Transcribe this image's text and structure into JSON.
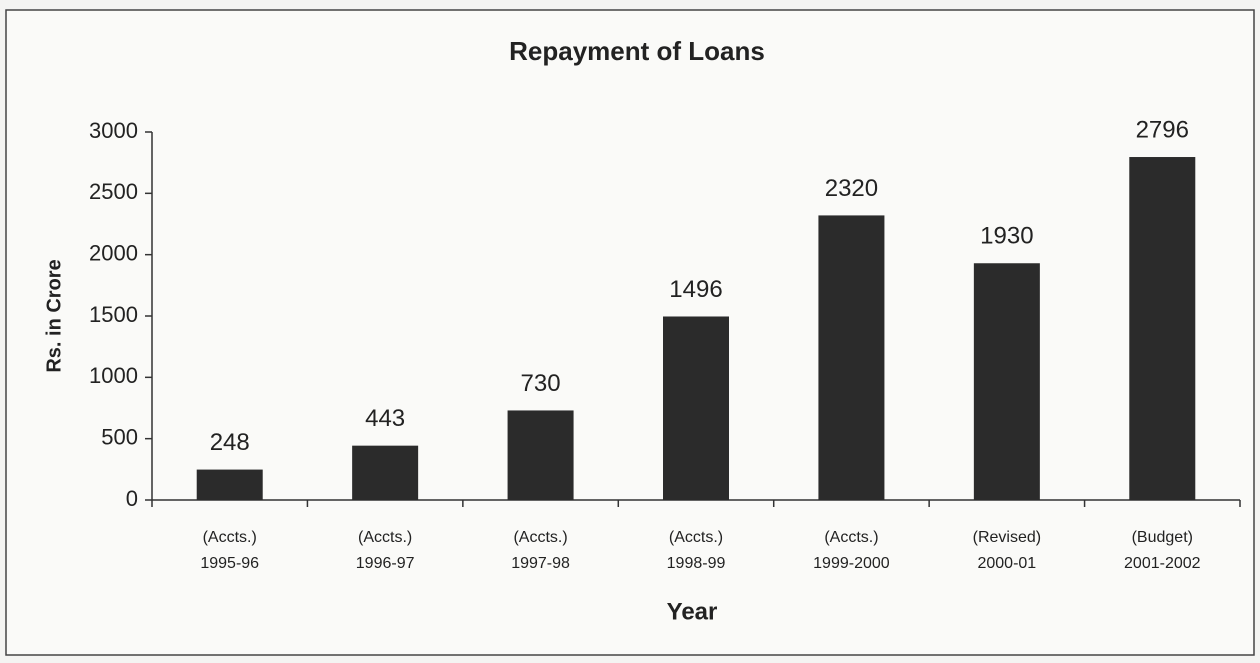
{
  "chart_data": {
    "type": "bar",
    "title": "Repayment of Loans",
    "x_label": "Year",
    "y_label": "Rs. in Crore",
    "categories": [
      [
        "(Accts.)",
        "1995-96"
      ],
      [
        "(Accts.)",
        "1996-97"
      ],
      [
        "(Accts.)",
        "1997-98"
      ],
      [
        "(Accts.)",
        "1998-99"
      ],
      [
        "(Accts.)",
        "1999-2000"
      ],
      [
        "(Revised)",
        "2000-01"
      ],
      [
        "(Budget)",
        "2001-2002"
      ]
    ],
    "values": [
      248,
      443,
      730,
      1496,
      2320,
      1930,
      2796
    ],
    "color": "#2b2b2b",
    "ylim": [
      0,
      3000
    ],
    "yticks": [
      0,
      500,
      1000,
      1500,
      2000,
      2500,
      3000
    ],
    "grid": false
  }
}
